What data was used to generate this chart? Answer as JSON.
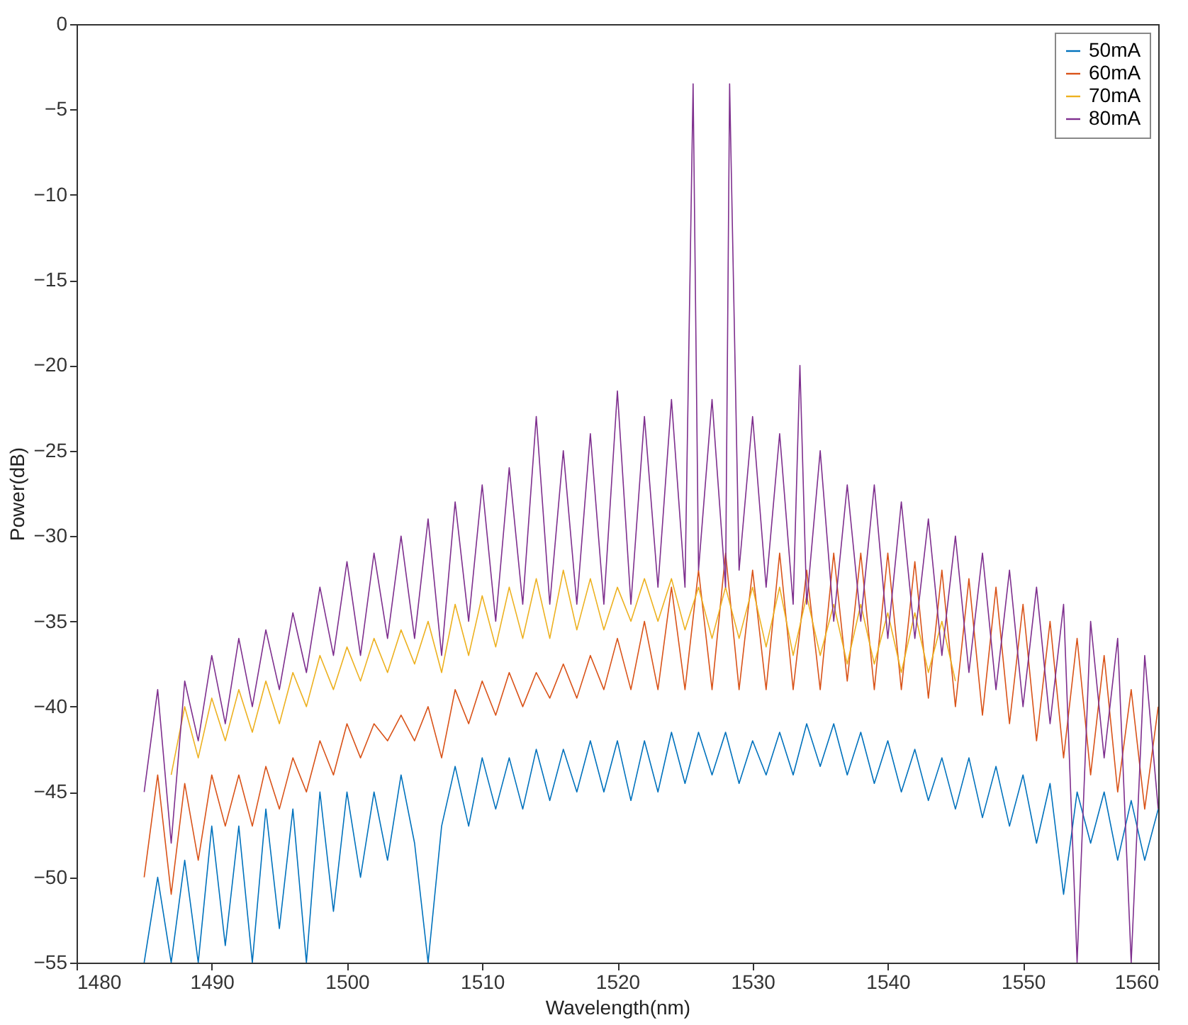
{
  "chart_data": {
    "type": "line",
    "xlabel": "Wavelength(nm)",
    "ylabel": "Power(dB)",
    "xlim": [
      1480,
      1560
    ],
    "xticks": [
      1480,
      1490,
      1500,
      1510,
      1520,
      1530,
      1540,
      1550,
      1560
    ],
    "ylim": [
      -55,
      0
    ],
    "yticks": [
      -55,
      -50,
      -45,
      -40,
      -35,
      -30,
      -25,
      -20,
      -15,
      -10,
      -5,
      0
    ],
    "grid": false,
    "legend": "top right",
    "marker": "none",
    "line_style": "solid",
    "series": [
      {
        "name": "50mA",
        "color": "#0072bd",
        "x": [
          1485,
          1486,
          1487,
          1488,
          1489,
          1490,
          1491,
          1492,
          1493,
          1494,
          1495,
          1496,
          1497,
          1498,
          1499,
          1500,
          1501,
          1502,
          1503,
          1504,
          1505,
          1506,
          1507,
          1508,
          1509,
          1510,
          1511,
          1512,
          1513,
          1514,
          1515,
          1516,
          1517,
          1518,
          1519,
          1520,
          1521,
          1522,
          1523,
          1524,
          1525,
          1526,
          1527,
          1528,
          1529,
          1530,
          1531,
          1532,
          1533,
          1534,
          1535,
          1536,
          1537,
          1538,
          1539,
          1540,
          1541,
          1542,
          1543,
          1544,
          1545,
          1546,
          1547,
          1548,
          1549,
          1550,
          1551,
          1552,
          1553,
          1554,
          1555,
          1556,
          1557,
          1558,
          1559,
          1560
        ],
        "values": [
          -55,
          -50,
          -55,
          -49,
          -55,
          -47,
          -54,
          -47,
          -55,
          -46,
          -53,
          -46,
          -55,
          -45,
          -52,
          -45,
          -50,
          -45,
          -49,
          -44,
          -48,
          -55,
          -47,
          -43.5,
          -47,
          -43,
          -46,
          -43,
          -46,
          -42.5,
          -45.5,
          -42.5,
          -45,
          -42,
          -45,
          -42,
          -45.5,
          -42,
          -45,
          -41.5,
          -44.5,
          -41.5,
          -44,
          -41.5,
          -44.5,
          -42,
          -44,
          -41.5,
          -44,
          -41,
          -43.5,
          -41,
          -44,
          -41.5,
          -44.5,
          -42,
          -45,
          -42.5,
          -45.5,
          -43,
          -46,
          -43,
          -46.5,
          -43.5,
          -47,
          -44,
          -48,
          -44.5,
          -51,
          -45,
          -48,
          -45,
          -49,
          -45.5,
          -49,
          -46
        ]
      },
      {
        "name": "60mA",
        "color": "#d95319",
        "x": [
          1485,
          1486,
          1487,
          1488,
          1489,
          1490,
          1491,
          1492,
          1493,
          1494,
          1495,
          1496,
          1497,
          1498,
          1499,
          1500,
          1501,
          1502,
          1503,
          1504,
          1505,
          1506,
          1507,
          1508,
          1509,
          1510,
          1511,
          1512,
          1513,
          1514,
          1515,
          1516,
          1517,
          1518,
          1519,
          1520,
          1521,
          1522,
          1523,
          1524,
          1525,
          1526,
          1527,
          1528,
          1529,
          1530,
          1531,
          1532,
          1533,
          1534,
          1535,
          1536,
          1537,
          1538,
          1539,
          1540,
          1541,
          1542,
          1543,
          1544,
          1545,
          1546,
          1547,
          1548,
          1549,
          1550,
          1551,
          1552,
          1553,
          1554,
          1555,
          1556,
          1557,
          1558,
          1559,
          1560
        ],
        "values": [
          -50,
          -44,
          -51,
          -44.5,
          -49,
          -44,
          -47,
          -44,
          -47,
          -43.5,
          -46,
          -43,
          -45,
          -42,
          -44,
          -41,
          -43,
          -41,
          -42,
          -40.5,
          -42,
          -40,
          -43,
          -39,
          -41,
          -38.5,
          -40.5,
          -38,
          -40,
          -38,
          -39.5,
          -37.5,
          -39.5,
          -37,
          -39,
          -36,
          -39,
          -35,
          -39,
          -33,
          -39,
          -32,
          -39,
          -31,
          -39,
          -32,
          -39,
          -31,
          -39,
          -32,
          -39,
          -31,
          -38.5,
          -31,
          -39,
          -31,
          -39,
          -31.5,
          -39.5,
          -32,
          -40,
          -32.5,
          -40.5,
          -33,
          -41,
          -34,
          -42,
          -35,
          -43,
          -36,
          -44,
          -37,
          -45,
          -39,
          -46,
          -40
        ]
      },
      {
        "name": "70mA",
        "color": "#edb120",
        "x": [
          1487,
          1488,
          1489,
          1490,
          1491,
          1492,
          1493,
          1494,
          1495,
          1496,
          1497,
          1498,
          1499,
          1500,
          1501,
          1502,
          1503,
          1504,
          1505,
          1506,
          1507,
          1508,
          1509,
          1510,
          1511,
          1512,
          1513,
          1514,
          1515,
          1516,
          1517,
          1518,
          1519,
          1520,
          1521,
          1522,
          1523,
          1524,
          1525,
          1526,
          1527,
          1528,
          1529,
          1530,
          1531,
          1532,
          1533,
          1534,
          1535,
          1536,
          1537,
          1538,
          1539,
          1540,
          1541,
          1542,
          1543,
          1544,
          1545
        ],
        "values": [
          -44,
          -40,
          -43,
          -39.5,
          -42,
          -39,
          -41.5,
          -38.5,
          -41,
          -38,
          -40,
          -37,
          -39,
          -36.5,
          -38.5,
          -36,
          -38,
          -35.5,
          -37.5,
          -35,
          -38,
          -34,
          -37,
          -33.5,
          -36.5,
          -33,
          -36,
          -32.5,
          -36,
          -32,
          -35.5,
          -32.5,
          -35.5,
          -33,
          -35,
          -32.5,
          -35,
          -32.5,
          -35.5,
          -33,
          -36,
          -33,
          -36,
          -33,
          -36.5,
          -33,
          -37,
          -33.5,
          -37,
          -34,
          -37.5,
          -34,
          -37.5,
          -34.5,
          -38,
          -34.5,
          -38,
          -35,
          -38.5
        ]
      },
      {
        "name": "80mA",
        "color": "#7e2f8e",
        "x": [
          1485,
          1486,
          1487,
          1488,
          1489,
          1490,
          1491,
          1492,
          1493,
          1494,
          1495,
          1496,
          1497,
          1498,
          1499,
          1500,
          1501,
          1502,
          1503,
          1504,
          1505,
          1506,
          1507,
          1508,
          1509,
          1510,
          1511,
          1512,
          1513,
          1514,
          1515,
          1516,
          1517,
          1518,
          1519,
          1520,
          1521,
          1522,
          1523,
          1524,
          1525,
          1525.6,
          1526,
          1527,
          1528,
          1528.3,
          1529,
          1530,
          1531,
          1532,
          1533,
          1533.5,
          1534,
          1535,
          1536,
          1537,
          1538,
          1539,
          1540,
          1541,
          1542,
          1543,
          1544,
          1545,
          1546,
          1547,
          1548,
          1549,
          1550,
          1551,
          1552,
          1553,
          1554,
          1555,
          1556,
          1557,
          1558,
          1559,
          1560
        ],
        "values": [
          -45,
          -39,
          -48,
          -38.5,
          -42,
          -37,
          -41,
          -36,
          -40,
          -35.5,
          -39,
          -34.5,
          -38,
          -33,
          -37,
          -31.5,
          -37,
          -31,
          -36,
          -30,
          -36,
          -29,
          -37,
          -28,
          -35,
          -27,
          -35,
          -26,
          -34,
          -23,
          -34,
          -25,
          -34,
          -24,
          -34,
          -21.5,
          -34,
          -23,
          -33,
          -22,
          -33,
          -3.5,
          -32,
          -22,
          -33,
          -3.5,
          -32,
          -23,
          -33,
          -24,
          -34,
          -20,
          -34,
          -25,
          -35,
          -27,
          -35,
          -27,
          -36,
          -28,
          -36,
          -29,
          -37,
          -30,
          -38,
          -31,
          -39,
          -32,
          -40,
          -33,
          -41,
          -34,
          -55,
          -35,
          -43,
          -36,
          -55,
          -37,
          -46
        ]
      }
    ]
  }
}
